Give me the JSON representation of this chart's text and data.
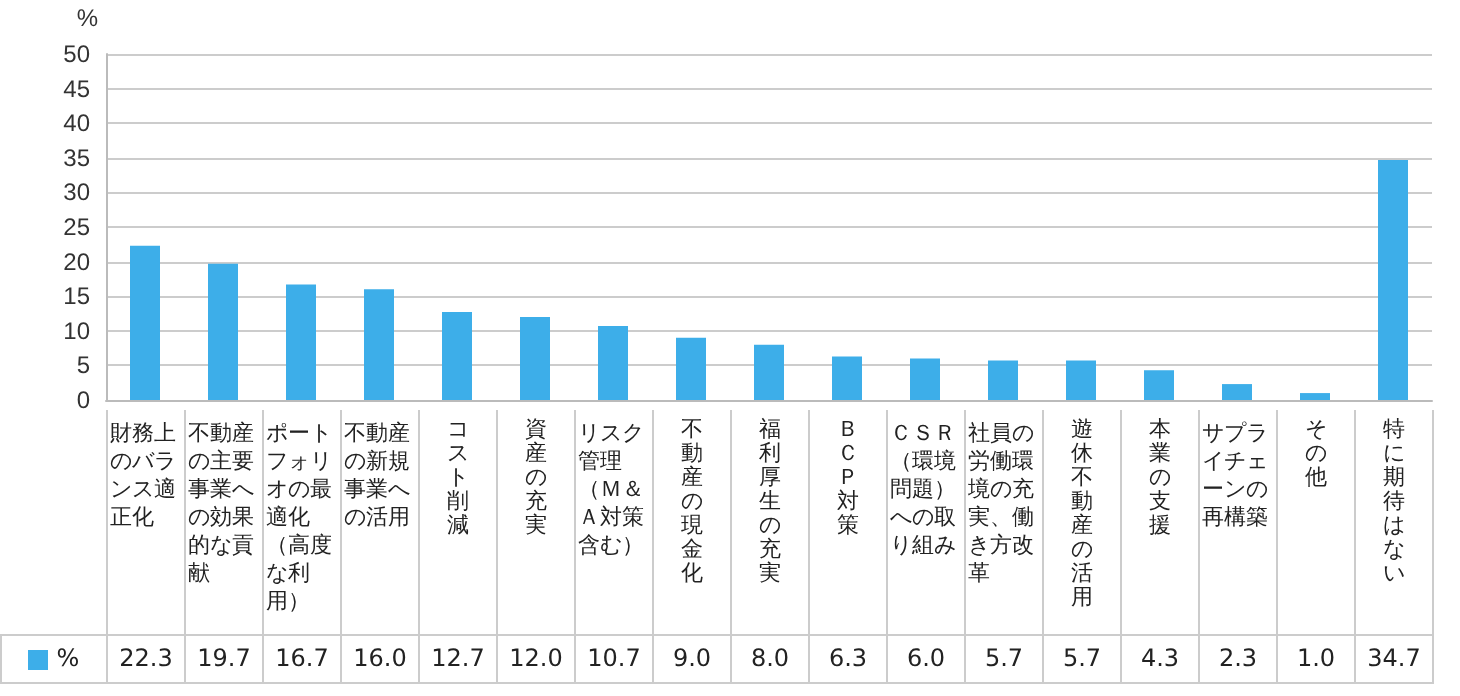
{
  "chart_data": {
    "type": "bar",
    "ylabel": "%",
    "categories": [
      "財務上のバランス適正化",
      "不動産の主要事業への効果的な貢献",
      "ポートフォリオの最適化（高度な利用）",
      "不動産の新規事業への活用",
      "コスト削減",
      "資産の充実",
      "リスク管理（Ｍ＆Ａ対策含む）",
      "不動産の現金化",
      "福利厚生の充実",
      "ＢＣＰ対策",
      "ＣＳＲ（環境問題）への取り組み",
      "社員の労働環境の充実、働き方改革",
      "遊休不動産の活用",
      "本業の支援",
      "サプライチェーンの再構築",
      "その他",
      "特に期待はない"
    ],
    "series": [
      {
        "name": "%",
        "color": "#3daee9",
        "values": [
          22.3,
          19.7,
          16.7,
          16.0,
          12.7,
          12.0,
          10.7,
          9.0,
          8.0,
          6.3,
          6.0,
          5.7,
          5.7,
          4.3,
          2.3,
          1.0,
          34.7
        ],
        "value_labels": [
          "22.3",
          "19.7",
          "16.7",
          "16.0",
          "12.7",
          "12.0",
          "10.7",
          "9.0",
          "8.0",
          "6.3",
          "6.0",
          "5.7",
          "5.7",
          "4.3",
          "2.3",
          "1.0",
          "34.7"
        ]
      }
    ],
    "ylim": [
      0,
      50
    ],
    "yticks": [
      0,
      5,
      10,
      15,
      20,
      25,
      30,
      35,
      40,
      45,
      50
    ],
    "grid": "y"
  }
}
